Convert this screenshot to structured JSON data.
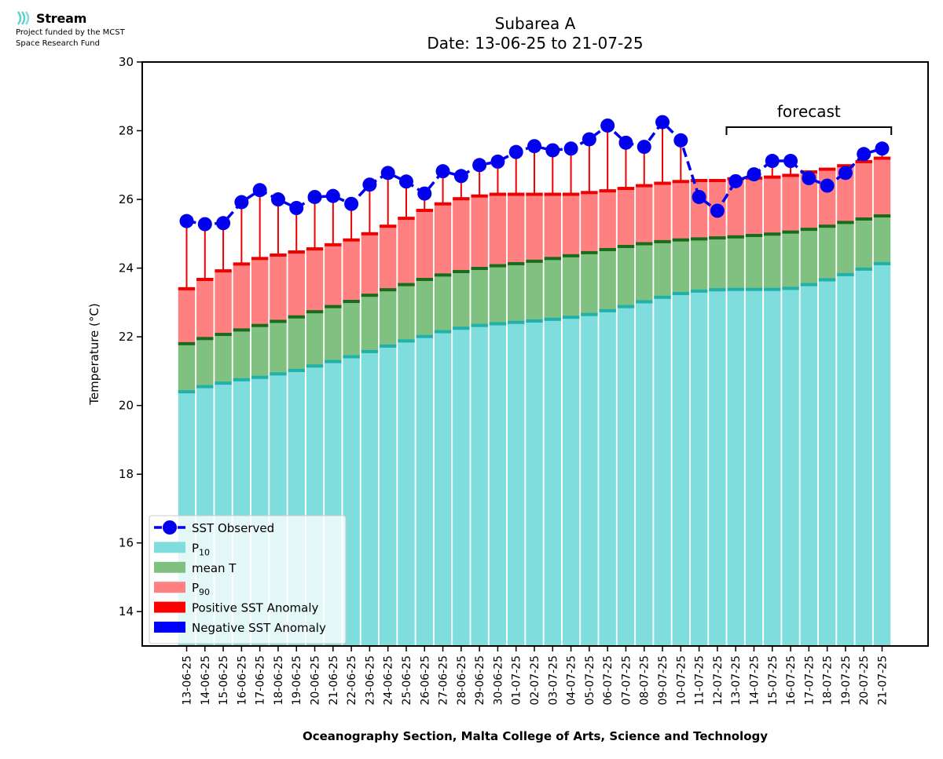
{
  "logo": {
    "brand": "Stream",
    "funding_line1": "Project funded by the MCST",
    "funding_line2": "Space Research Fund"
  },
  "chart_data": {
    "type": "bar",
    "title": "Subarea A",
    "subtitle": "Date: 13-06-25 to 21-07-25",
    "xlabel": "Oceanography Section, Malta College of Arts, Science and Technology",
    "ylabel": "Temperature (°C)",
    "ylim": [
      13,
      30
    ],
    "yticks": [
      14,
      16,
      18,
      20,
      22,
      24,
      26,
      28,
      30
    ],
    "categories": [
      "13-06-25",
      "14-06-25",
      "15-06-25",
      "16-06-25",
      "17-06-25",
      "18-06-25",
      "19-06-25",
      "20-06-25",
      "21-06-25",
      "22-06-25",
      "23-06-25",
      "24-06-25",
      "25-06-25",
      "26-06-25",
      "27-06-25",
      "28-06-25",
      "29-06-25",
      "30-06-25",
      "01-07-25",
      "02-07-25",
      "03-07-25",
      "04-07-25",
      "05-07-25",
      "06-07-25",
      "07-07-25",
      "08-07-25",
      "09-07-25",
      "10-07-25",
      "11-07-25",
      "12-07-25",
      "13-07-25",
      "14-07-25",
      "15-07-25",
      "16-07-25",
      "17-07-25",
      "18-07-25",
      "19-07-25",
      "20-07-25",
      "21-07-25"
    ],
    "series": [
      {
        "name": "P10",
        "values": [
          20.4,
          20.55,
          20.65,
          20.75,
          20.82,
          20.92,
          21.02,
          21.15,
          21.28,
          21.42,
          21.57,
          21.73,
          21.88,
          22.01,
          22.15,
          22.25,
          22.33,
          22.38,
          22.42,
          22.46,
          22.51,
          22.57,
          22.65,
          22.76,
          22.88,
          23.02,
          23.15,
          23.26,
          23.33,
          23.37,
          23.38,
          23.38,
          23.38,
          23.41,
          23.52,
          23.66,
          23.81,
          23.97,
          24.13
        ]
      },
      {
        "name": "mean T",
        "values": [
          21.8,
          21.95,
          22.07,
          22.2,
          22.33,
          22.45,
          22.58,
          22.73,
          22.88,
          23.03,
          23.21,
          23.37,
          23.52,
          23.67,
          23.8,
          23.9,
          23.99,
          24.07,
          24.13,
          24.2,
          24.28,
          24.36,
          24.45,
          24.54,
          24.63,
          24.71,
          24.77,
          24.82,
          24.85,
          24.88,
          24.91,
          24.95,
          24.99,
          25.05,
          25.13,
          25.22,
          25.33,
          25.43,
          25.52
        ]
      },
      {
        "name": "P90",
        "values": [
          23.4,
          23.67,
          23.92,
          24.12,
          24.28,
          24.38,
          24.47,
          24.56,
          24.68,
          24.82,
          25.0,
          25.22,
          25.45,
          25.68,
          25.87,
          26.02,
          26.1,
          26.15,
          26.15,
          26.15,
          26.15,
          26.15,
          26.2,
          26.25,
          26.32,
          26.4,
          26.47,
          26.52,
          26.55,
          26.55,
          26.6,
          26.62,
          26.65,
          26.7,
          26.8,
          26.88,
          26.98,
          27.1,
          27.2
        ]
      },
      {
        "name": "SST Observed",
        "values": [
          25.37,
          25.28,
          25.31,
          25.92,
          26.27,
          26.0,
          25.75,
          26.07,
          26.1,
          25.87,
          26.43,
          26.77,
          26.52,
          26.17,
          26.82,
          26.68,
          27.0,
          27.1,
          27.38,
          27.55,
          27.43,
          27.48,
          27.75,
          28.15,
          27.65,
          27.53,
          28.25,
          27.72,
          26.07,
          25.67,
          26.53,
          26.73,
          27.12,
          27.12,
          26.62,
          26.4,
          26.77,
          27.32,
          27.48
        ]
      }
    ],
    "annotation": {
      "label": "forecast",
      "from": "13-07-25",
      "to": "21-07-25"
    },
    "legend": {
      "placement": "lower-left",
      "entries": [
        {
          "label": "SST Observed",
          "kind": "line-marker",
          "color": "#0000ee"
        },
        {
          "label": "P",
          "sub": "10",
          "kind": "patch",
          "color": "#7fdddd"
        },
        {
          "label": "mean T",
          "kind": "patch",
          "color": "#80c080"
        },
        {
          "label": "P",
          "sub": "90",
          "kind": "patch",
          "color": "#ff8080"
        },
        {
          "label": "Positive SST Anomaly",
          "kind": "patch",
          "color": "#ff0000"
        },
        {
          "label": "Negative SST Anomaly",
          "kind": "patch",
          "color": "#0000ff"
        }
      ]
    },
    "colors": {
      "p10": "#7fdddd",
      "p10_cap": "#20b2aa",
      "mean": "#80c080",
      "mean_cap": "#1a6b1a",
      "p90": "#ff8080",
      "p90_cap": "#ee0000",
      "anomaly_line": "#ee0000",
      "observed": "#0000ee"
    }
  }
}
